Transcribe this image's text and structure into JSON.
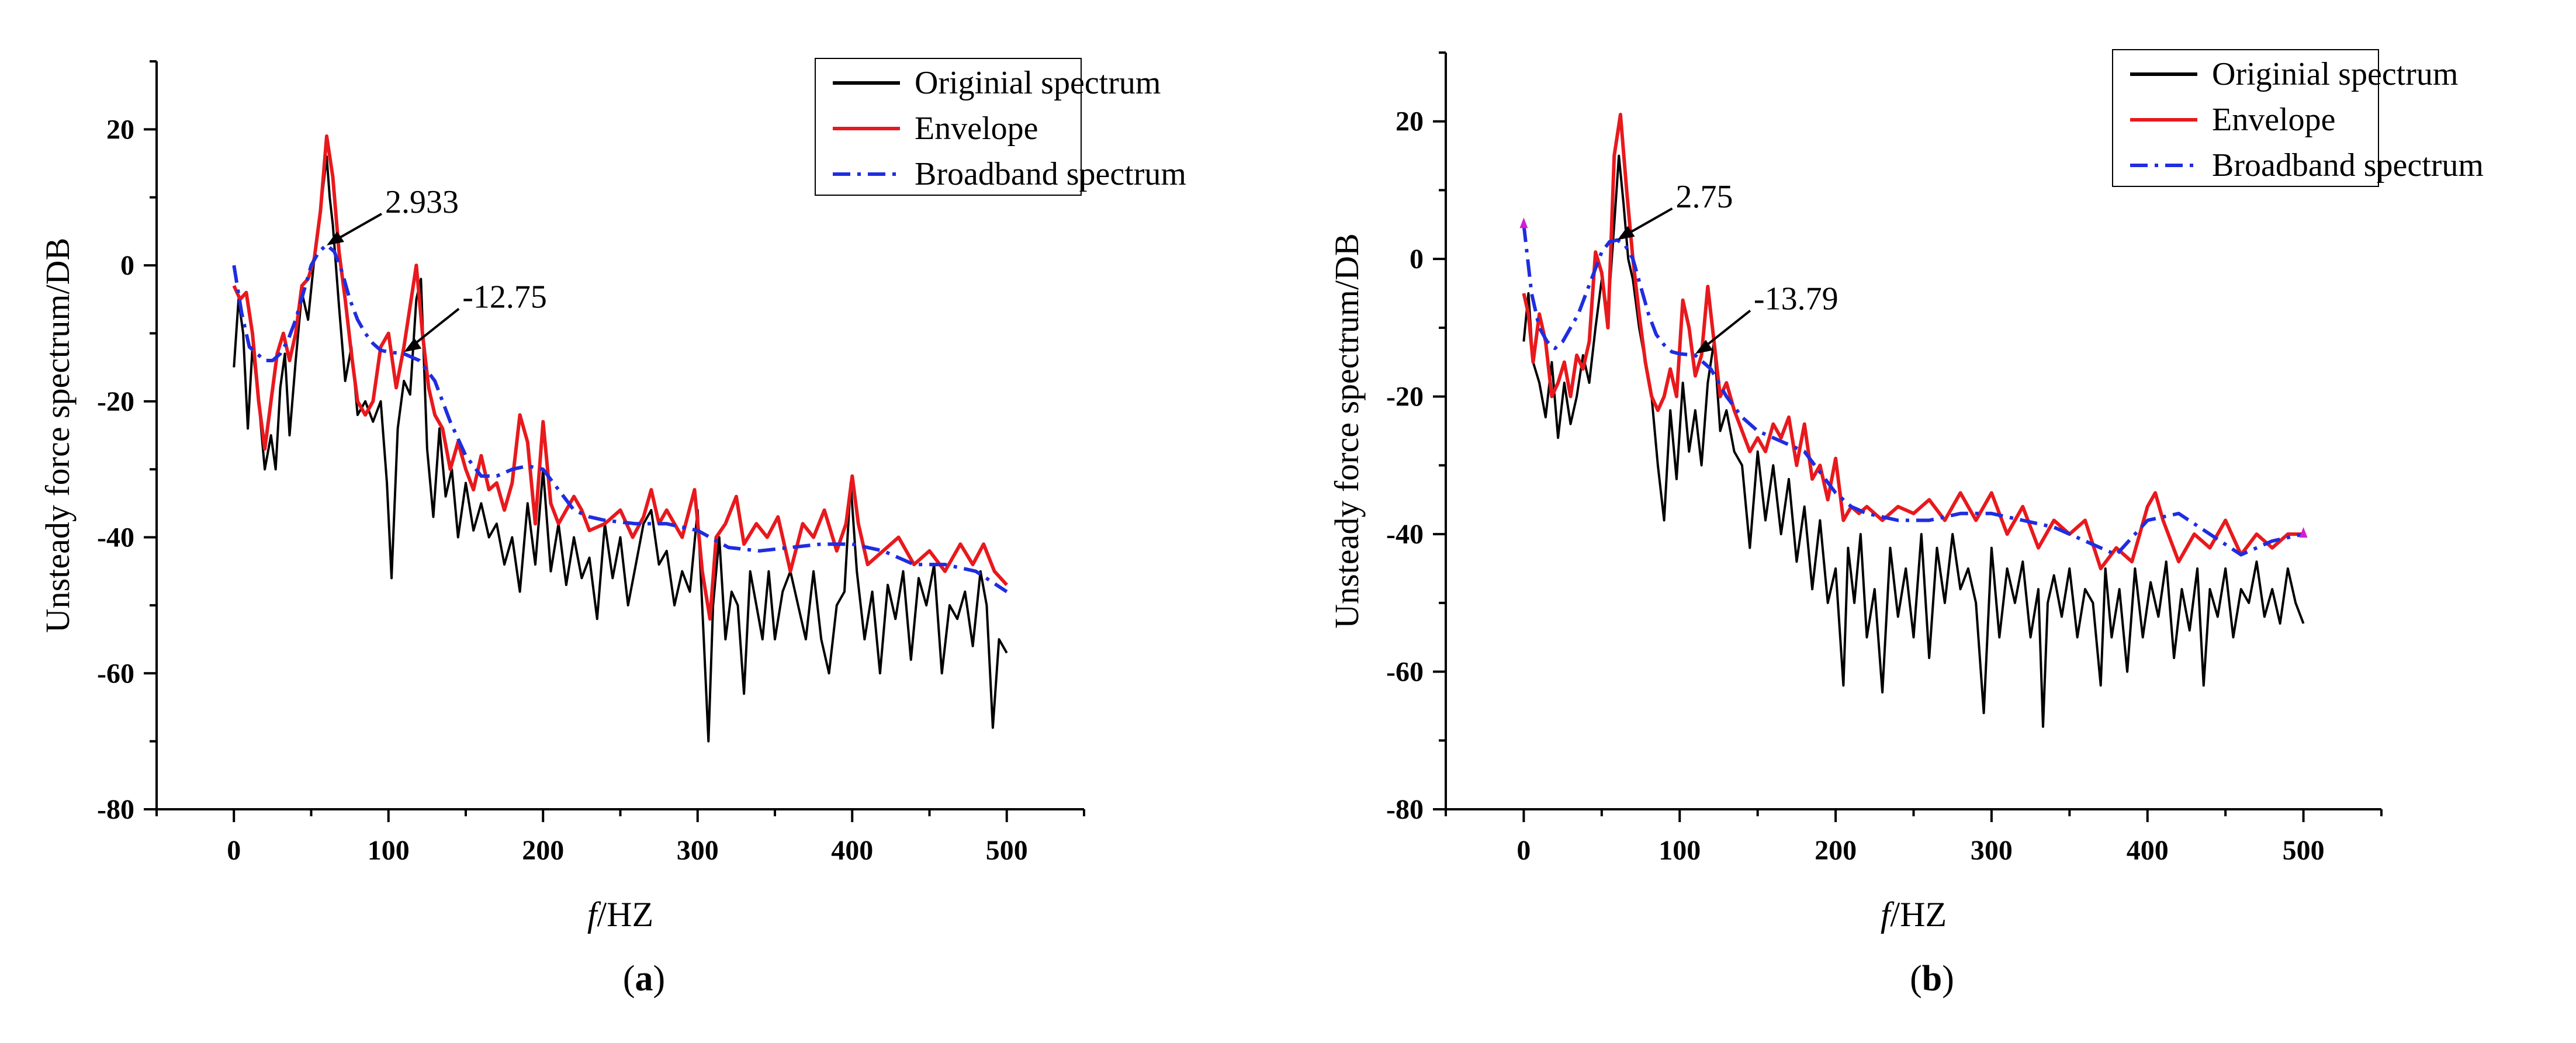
{
  "figure": {
    "panels": [
      {
        "caption_open": "(",
        "caption_letter": "a",
        "caption_close": ")"
      },
      {
        "caption_open": "(",
        "caption_letter": "b",
        "caption_close": ")"
      }
    ]
  },
  "style": {
    "original_color": "#000000",
    "envelope_color": "#e8191d",
    "broadband_color": "#1f2de0",
    "endpoint_marker_color": "#d21ed2"
  },
  "chart_data": [
    {
      "type": "line",
      "xlabel_italic": "f",
      "xlabel_rest": "/HZ",
      "ylabel": "Unsteady force spectrum/DB",
      "xlim": [
        -50,
        550
      ],
      "ylim": [
        -80,
        30
      ],
      "xticks": [
        0,
        100,
        200,
        300,
        400,
        500
      ],
      "yticks": [
        -80,
        -60,
        -40,
        -20,
        0,
        20
      ],
      "legend_position": "top-right",
      "series": [
        {
          "name": "Originial spectrum",
          "style": "solid",
          "x": [
            0,
            3,
            6,
            9,
            12,
            16,
            20,
            24,
            27,
            30,
            33,
            36,
            40,
            44,
            48,
            52,
            56,
            60,
            62,
            64,
            68,
            72,
            76,
            80,
            85,
            90,
            95,
            99,
            102,
            106,
            110,
            114,
            118,
            121,
            125,
            129,
            133,
            137,
            141,
            145,
            150,
            155,
            160,
            165,
            170,
            175,
            180,
            185,
            190,
            195,
            200,
            205,
            210,
            215,
            220,
            225,
            230,
            235,
            240,
            245,
            250,
            255,
            260,
            265,
            270,
            275,
            280,
            285,
            290,
            295,
            300,
            304,
            307,
            310,
            314,
            318,
            322,
            326,
            330,
            334,
            338,
            342,
            346,
            350,
            355,
            360,
            365,
            370,
            375,
            380,
            385,
            390,
            395,
            399,
            403,
            408,
            413,
            418,
            423,
            428,
            433,
            438,
            443,
            448,
            453,
            458,
            463,
            468,
            473,
            478,
            483,
            487,
            491,
            495,
            500
          ],
          "y": [
            -15,
            -5,
            -10,
            -24,
            -12,
            -20,
            -30,
            -25,
            -30,
            -18,
            -13,
            -25,
            -14,
            -4,
            -8,
            1,
            8,
            16,
            10,
            6,
            -6,
            -17,
            -12,
            -22,
            -20,
            -23,
            -20,
            -32,
            -46,
            -24,
            -17,
            -19,
            -5,
            -2,
            -27,
            -37,
            -24,
            -34,
            -30,
            -40,
            -32,
            -39,
            -35,
            -40,
            -38,
            -44,
            -40,
            -48,
            -35,
            -44,
            -30,
            -45,
            -38,
            -47,
            -40,
            -46,
            -43,
            -52,
            -38,
            -46,
            -40,
            -50,
            -44,
            -38,
            -36,
            -44,
            -42,
            -50,
            -45,
            -48,
            -36,
            -55,
            -70,
            -50,
            -40,
            -55,
            -48,
            -50,
            -63,
            -45,
            -50,
            -55,
            -45,
            -55,
            -48,
            -45,
            -50,
            -55,
            -45,
            -55,
            -60,
            -50,
            -48,
            -32,
            -45,
            -55,
            -48,
            -60,
            -47,
            -52,
            -45,
            -58,
            -46,
            -50,
            -44,
            -60,
            -50,
            -52,
            -48,
            -56,
            -45,
            -50,
            -68,
            -55,
            -57
          ]
        },
        {
          "name": "Envelope",
          "style": "solid",
          "x": [
            0,
            4,
            8,
            12,
            16,
            20,
            24,
            28,
            32,
            36,
            40,
            44,
            48,
            52,
            56,
            60,
            64,
            68,
            72,
            76,
            80,
            85,
            90,
            95,
            100,
            105,
            110,
            114,
            118,
            122,
            126,
            130,
            135,
            140,
            145,
            150,
            155,
            160,
            165,
            170,
            175,
            180,
            185,
            190,
            195,
            200,
            205,
            210,
            215,
            220,
            225,
            230,
            240,
            250,
            258,
            265,
            270,
            275,
            280,
            290,
            298,
            303,
            308,
            312,
            318,
            325,
            330,
            338,
            345,
            352,
            360,
            368,
            375,
            382,
            390,
            396,
            400,
            404,
            410,
            420,
            430,
            440,
            450,
            460,
            470,
            478,
            485,
            492,
            500
          ],
          "y": [
            -3,
            -5,
            -4,
            -10,
            -20,
            -27,
            -20,
            -13,
            -10,
            -14,
            -10,
            -3,
            -2,
            1,
            8,
            19,
            13,
            2,
            -5,
            -13,
            -20,
            -22,
            -20,
            -12,
            -10,
            -18,
            -12,
            -6,
            0,
            -10,
            -18,
            -22,
            -24,
            -30,
            -26,
            -30,
            -33,
            -28,
            -33,
            -32,
            -36,
            -32,
            -22,
            -26,
            -38,
            -23,
            -35,
            -38,
            -36,
            -34,
            -36,
            -39,
            -38,
            -36,
            -40,
            -37,
            -33,
            -38,
            -36,
            -40,
            -33,
            -45,
            -52,
            -40,
            -38,
            -34,
            -41,
            -38,
            -40,
            -37,
            -45,
            -38,
            -40,
            -36,
            -42,
            -38,
            -31,
            -38,
            -44,
            -42,
            -40,
            -44,
            -42,
            -45,
            -41,
            -44,
            -41,
            -45,
            -47
          ]
        },
        {
          "name": "Broadband spectrum",
          "style": "dashdot",
          "x": [
            0,
            5,
            10,
            15,
            20,
            25,
            30,
            35,
            40,
            45,
            50,
            55,
            60,
            65,
            70,
            75,
            80,
            85,
            90,
            95,
            100,
            110,
            120,
            130,
            140,
            150,
            160,
            170,
            180,
            190,
            200,
            210,
            220,
            230,
            240,
            260,
            280,
            300,
            320,
            340,
            360,
            380,
            400,
            420,
            440,
            460,
            480,
            500
          ],
          "y": [
            0,
            -7,
            -12,
            -13,
            -14,
            -14,
            -13,
            -11,
            -8,
            -4,
            0,
            2,
            3,
            2,
            -1,
            -5,
            -8,
            -10,
            -11.5,
            -12.5,
            -12.75,
            -13,
            -14,
            -17,
            -23,
            -28,
            -31,
            -31,
            -30,
            -29.5,
            -30,
            -33,
            -36,
            -37,
            -37.5,
            -38,
            -38,
            -39,
            -41.5,
            -42,
            -41.5,
            -41,
            -41,
            -42,
            -44,
            -44,
            -45,
            -48
          ]
        }
      ],
      "annotations": [
        {
          "text": "2.933",
          "x": 60,
          "y": 2.933
        },
        {
          "text": "-12.75",
          "x": 110,
          "y": -12.75
        }
      ]
    },
    {
      "type": "line",
      "xlabel_italic": "f",
      "xlabel_rest": "/HZ",
      "ylabel": "Unsteady force spectrum/DB",
      "xlim": [
        -50,
        550
      ],
      "ylim": [
        -80,
        30
      ],
      "xticks": [
        0,
        100,
        200,
        300,
        400,
        500
      ],
      "yticks": [
        -80,
        -60,
        -40,
        -20,
        0,
        20
      ],
      "legend_position": "top-right",
      "series": [
        {
          "name": "Originial spectrum",
          "style": "solid",
          "x": [
            0,
            3,
            6,
            10,
            14,
            18,
            22,
            26,
            30,
            34,
            38,
            42,
            46,
            50,
            54,
            58,
            61,
            64,
            67,
            70,
            74,
            78,
            82,
            86,
            90,
            94,
            98,
            102,
            106,
            110,
            114,
            118,
            122,
            126,
            130,
            135,
            140,
            145,
            150,
            155,
            160,
            165,
            170,
            175,
            180,
            185,
            190,
            195,
            200,
            205,
            208,
            212,
            216,
            220,
            225,
            230,
            235,
            240,
            245,
            250,
            255,
            260,
            265,
            270,
            275,
            280,
            285,
            290,
            295,
            300,
            305,
            310,
            315,
            320,
            325,
            330,
            333,
            336,
            340,
            345,
            350,
            355,
            360,
            365,
            370,
            373,
            377,
            382,
            387,
            392,
            397,
            402,
            407,
            412,
            417,
            422,
            427,
            432,
            436,
            440,
            445,
            450,
            455,
            460,
            465,
            470,
            475,
            480,
            485,
            490,
            495,
            500
          ],
          "y": [
            -12,
            -5,
            -15,
            -18,
            -23,
            -15,
            -26,
            -18,
            -24,
            -20,
            -14,
            -18,
            -10,
            -3,
            -8,
            5,
            15,
            8,
            0,
            -3,
            -10,
            -15,
            -20,
            -30,
            -38,
            -22,
            -32,
            -18,
            -28,
            -22,
            -30,
            -18,
            -12,
            -25,
            -22,
            -28,
            -30,
            -42,
            -28,
            -38,
            -30,
            -40,
            -32,
            -44,
            -36,
            -48,
            -38,
            -50,
            -45,
            -62,
            -42,
            -50,
            -40,
            -55,
            -48,
            -63,
            -42,
            -52,
            -45,
            -55,
            -40,
            -58,
            -42,
            -50,
            -40,
            -48,
            -45,
            -50,
            -66,
            -42,
            -55,
            -45,
            -50,
            -44,
            -55,
            -48,
            -68,
            -50,
            -46,
            -52,
            -45,
            -55,
            -48,
            -50,
            -62,
            -45,
            -55,
            -48,
            -60,
            -45,
            -55,
            -47,
            -52,
            -44,
            -58,
            -48,
            -54,
            -45,
            -62,
            -48,
            -52,
            -45,
            -55,
            -48,
            -50,
            -44,
            -52,
            -48,
            -53,
            -45,
            -50,
            -53
          ]
        },
        {
          "name": "Envelope",
          "style": "solid",
          "x": [
            0,
            3,
            6,
            10,
            14,
            18,
            22,
            26,
            30,
            34,
            38,
            42,
            46,
            50,
            54,
            58,
            62,
            66,
            70,
            74,
            78,
            82,
            86,
            90,
            94,
            98,
            102,
            106,
            110,
            114,
            118,
            122,
            126,
            130,
            135,
            140,
            145,
            150,
            155,
            160,
            165,
            170,
            175,
            180,
            185,
            190,
            195,
            200,
            205,
            210,
            215,
            220,
            230,
            240,
            250,
            260,
            270,
            280,
            290,
            300,
            310,
            320,
            330,
            340,
            350,
            360,
            370,
            380,
            390,
            400,
            405,
            410,
            420,
            430,
            440,
            450,
            460,
            470,
            480,
            490,
            500
          ],
          "y": [
            -5,
            -8,
            -15,
            -8,
            -12,
            -20,
            -18,
            -15,
            -20,
            -14,
            -16,
            -12,
            1,
            -2,
            -10,
            15,
            21,
            10,
            0,
            -8,
            -15,
            -20,
            -22,
            -20,
            -16,
            -20,
            -6,
            -10,
            -17,
            -14,
            -4,
            -12,
            -20,
            -18,
            -22,
            -25,
            -28,
            -26,
            -28,
            -24,
            -26,
            -23,
            -30,
            -24,
            -32,
            -30,
            -35,
            -29,
            -38,
            -36,
            -37,
            -36,
            -38,
            -36,
            -37,
            -35,
            -38,
            -34,
            -38,
            -34,
            -40,
            -36,
            -42,
            -38,
            -40,
            -38,
            -45,
            -42,
            -44,
            -36,
            -34,
            -38,
            -44,
            -40,
            -42,
            -38,
            -43,
            -40,
            -42,
            -40,
            -40
          ]
        },
        {
          "name": "Broadband spectrum",
          "style": "dashdot",
          "x": [
            0,
            5,
            10,
            15,
            20,
            25,
            30,
            35,
            40,
            45,
            50,
            55,
            60,
            65,
            70,
            75,
            80,
            85,
            90,
            95,
            100,
            110,
            120,
            130,
            140,
            150,
            160,
            170,
            180,
            190,
            200,
            210,
            220,
            240,
            260,
            280,
            300,
            320,
            340,
            360,
            380,
            400,
            420,
            440,
            460,
            480,
            500
          ],
          "y": [
            5,
            -5,
            -10,
            -12,
            -13,
            -12,
            -10,
            -8,
            -5,
            -2,
            1,
            2.5,
            2.75,
            2,
            0,
            -4,
            -8,
            -11,
            -12.5,
            -13.5,
            -13.79,
            -14,
            -16,
            -20,
            -23,
            -25,
            -26,
            -27,
            -28,
            -31,
            -34,
            -36,
            -37,
            -38,
            -38,
            -37,
            -37,
            -38,
            -39,
            -41,
            -43,
            -38,
            -37,
            -40,
            -43,
            -41,
            -40
          ]
        }
      ],
      "annotations": [
        {
          "text": "2.75",
          "x": 60,
          "y": 2.75
        },
        {
          "text": "-13.79",
          "x": 110,
          "y": -13.79
        }
      ]
    }
  ]
}
